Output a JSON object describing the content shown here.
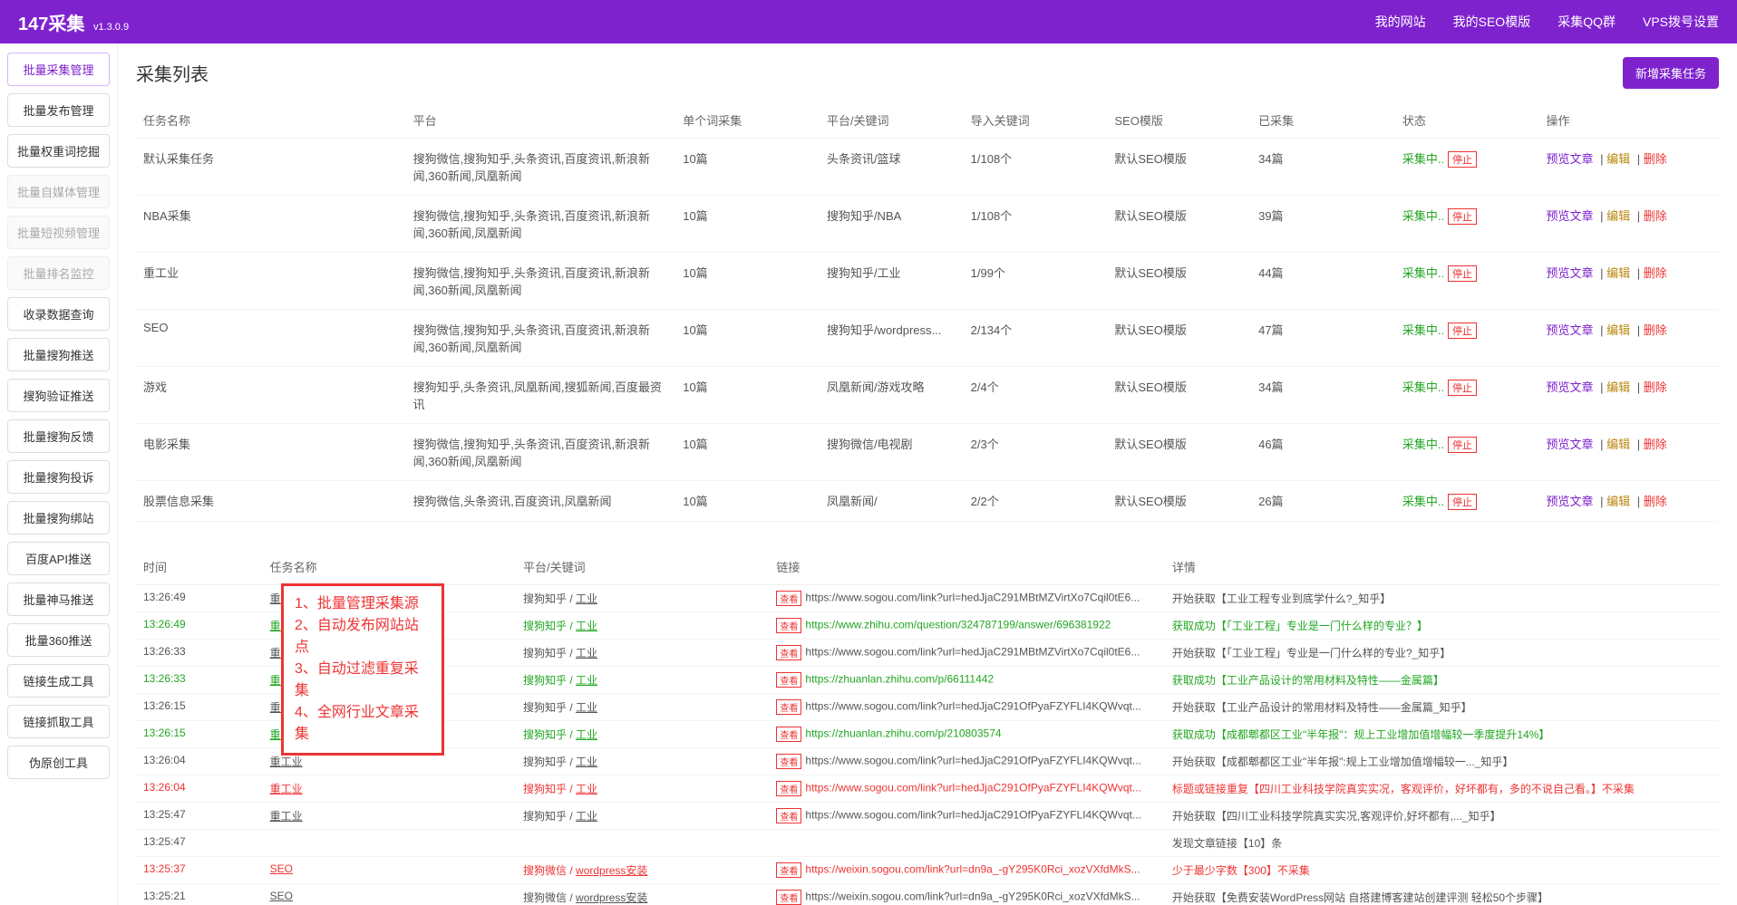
{
  "brand": {
    "name": "147采集",
    "version": "v1.3.0.9"
  },
  "nav": [
    "我的网站",
    "我的SEO模版",
    "采集QQ群",
    "VPS拨号设置"
  ],
  "sidebar": [
    {
      "label": "批量采集管理",
      "state": "active"
    },
    {
      "label": "批量发布管理",
      "state": ""
    },
    {
      "label": "批量权重词挖掘",
      "state": ""
    },
    {
      "label": "批量自媒体管理",
      "state": "disabled"
    },
    {
      "label": "批量短视频管理",
      "state": "disabled"
    },
    {
      "label": "批量排名监控",
      "state": "disabled"
    },
    {
      "label": "收录数据查询",
      "state": ""
    },
    {
      "label": "批量搜狗推送",
      "state": ""
    },
    {
      "label": "搜狗验证推送",
      "state": ""
    },
    {
      "label": "批量搜狗反馈",
      "state": ""
    },
    {
      "label": "批量搜狗投诉",
      "state": ""
    },
    {
      "label": "批量搜狗绑站",
      "state": ""
    },
    {
      "label": "百度API推送",
      "state": ""
    },
    {
      "label": "批量神马推送",
      "state": ""
    },
    {
      "label": "批量360推送",
      "state": ""
    },
    {
      "label": "链接生成工具",
      "state": ""
    },
    {
      "label": "链接抓取工具",
      "state": ""
    },
    {
      "label": "伪原创工具",
      "state": ""
    }
  ],
  "pageTitle": "采集列表",
  "newBtn": "新增采集任务",
  "cols": [
    "任务名称",
    "平台",
    "单个词采集",
    "平台/关键词",
    "导入关键词",
    "SEO模版",
    "已采集",
    "状态",
    "操作"
  ],
  "statusText": "采集中..",
  "stopText": "停止",
  "actions": {
    "preview": "预览文章",
    "edit": "编辑",
    "del": "删除"
  },
  "tasks": [
    {
      "name": "默认采集任务",
      "plat": "搜狗微信,搜狗知乎,头条资讯,百度资讯,新浪新闻,360新闻,凤凰新闻",
      "per": "10篇",
      "kw": "头条资讯/篮球",
      "imp": "1/108个",
      "tpl": "默认SEO模版",
      "cnt": "34篇"
    },
    {
      "name": "NBA采集",
      "plat": "搜狗微信,搜狗知乎,头条资讯,百度资讯,新浪新闻,360新闻,凤凰新闻",
      "per": "10篇",
      "kw": "搜狗知乎/NBA",
      "imp": "1/108个",
      "tpl": "默认SEO模版",
      "cnt": "39篇"
    },
    {
      "name": "重工业",
      "plat": "搜狗微信,搜狗知乎,头条资讯,百度资讯,新浪新闻,360新闻,凤凰新闻",
      "per": "10篇",
      "kw": "搜狗知乎/工业",
      "imp": "1/99个",
      "tpl": "默认SEO模版",
      "cnt": "44篇"
    },
    {
      "name": "SEO",
      "plat": "搜狗微信,搜狗知乎,头条资讯,百度资讯,新浪新闻,360新闻,凤凰新闻",
      "per": "10篇",
      "kw": "搜狗知乎/wordpress...",
      "imp": "2/134个",
      "tpl": "默认SEO模版",
      "cnt": "47篇"
    },
    {
      "name": "游戏",
      "plat": "搜狗知乎,头条资讯,凤凰新闻,搜狐新闻,百度最资讯",
      "per": "10篇",
      "kw": "凤凰新闻/游戏攻略",
      "imp": "2/4个",
      "tpl": "默认SEO模版",
      "cnt": "34篇"
    },
    {
      "name": "电影采集",
      "plat": "搜狗微信,搜狗知乎,头条资讯,百度资讯,新浪新闻,360新闻,凤凰新闻",
      "per": "10篇",
      "kw": "搜狗微信/电视剧",
      "imp": "2/3个",
      "tpl": "默认SEO模版",
      "cnt": "46篇"
    },
    {
      "name": "股票信息采集",
      "plat": "搜狗微信,头条资讯,百度资讯,凤凰新闻",
      "per": "10篇",
      "kw": "凤凰新闻/",
      "imp": "2/2个",
      "tpl": "默认SEO模版",
      "cnt": "26篇"
    }
  ],
  "logCols": [
    "时间",
    "任务名称",
    "平台/关键词",
    "链接",
    "详情"
  ],
  "badge": "查看",
  "overlay": [
    "1、批量管理采集源",
    "2、自动发布网站站点",
    "3、自动过滤重复采集",
    "4、全网行业文章采集"
  ],
  "logs": [
    {
      "c": "",
      "t": "13:26:49",
      "task": "重工业",
      "pk": "搜狗知乎 / 工业",
      "url": "https://www.sogou.com/link?url=hedJjaC291MBtMZVirtXo7Cqil0tE6...",
      "d": "开始获取【工业工程专业到底学什么?_知乎】"
    },
    {
      "c": "row-green",
      "t": "13:26:49",
      "task": "重工业",
      "pk": "搜狗知乎 / 工业",
      "url": "https://www.zhihu.com/question/324787199/answer/696381922",
      "d": "获取成功【「工业工程」专业是一门什么样的专业？】"
    },
    {
      "c": "",
      "t": "13:26:33",
      "task": "重工业",
      "pk": "搜狗知乎 / 工业",
      "url": "https://www.sogou.com/link?url=hedJjaC291MBtMZVirtXo7Cqil0tE6...",
      "d": "开始获取【「工业工程」专业是一门什么样的专业?_知乎】"
    },
    {
      "c": "row-green",
      "t": "13:26:33",
      "task": "重工业",
      "pk": "搜狗知乎 / 工业",
      "url": "https://zhuanlan.zhihu.com/p/66111442",
      "d": "获取成功【工业产品设计的常用材料及特性——金属篇】"
    },
    {
      "c": "",
      "t": "13:26:15",
      "task": "重工业",
      "pk": "搜狗知乎 / 工业",
      "url": "https://www.sogou.com/link?url=hedJjaC291OfPyaFZYFLI4KQWvqt...",
      "d": "开始获取【工业产品设计的常用材料及特性——金属篇_知乎】"
    },
    {
      "c": "row-green",
      "t": "13:26:15",
      "task": "重工业",
      "pk": "搜狗知乎 / 工业",
      "url": "https://zhuanlan.zhihu.com/p/210803574",
      "d": "获取成功【成都郫都区工业\"半年报\"：规上工业增加值增幅较一季度提升14%】"
    },
    {
      "c": "",
      "t": "13:26:04",
      "task": "重工业",
      "pk": "搜狗知乎 / 工业",
      "url": "https://www.sogou.com/link?url=hedJjaC291OfPyaFZYFLI4KQWvqt...",
      "d": "开始获取【成都郫都区工业\"半年报\":规上工业增加值增幅较一..._知乎】"
    },
    {
      "c": "row-red",
      "t": "13:26:04",
      "task": "重工业",
      "pk": "搜狗知乎 / 工业",
      "url": "https://www.sogou.com/link?url=hedJjaC291OfPyaFZYFLI4KQWvqt...",
      "d": "标题或链接重复【四川工业科技学院真实实况，客观评价，好坏都有，多的不说自己看。】不采集"
    },
    {
      "c": "",
      "t": "13:25:47",
      "task": "重工业",
      "pk": "搜狗知乎 / 工业",
      "url": "https://www.sogou.com/link?url=hedJjaC291OfPyaFZYFLI4KQWvqt...",
      "d": "开始获取【四川工业科技学院真实实况,客观评价,好坏都有,..._知乎】"
    },
    {
      "c": "",
      "t": "13:25:47",
      "task": "",
      "pk": "",
      "url": "",
      "d": "发现文章链接【10】条"
    },
    {
      "c": "row-red",
      "t": "13:25:37",
      "task": "SEO",
      "pk": "搜狗微信 / wordpress安装",
      "url": "https://weixin.sogou.com/link?url=dn9a_-gY295K0Rci_xozVXfdMkS...",
      "d": "少于最少字数【300】不采集"
    },
    {
      "c": "",
      "t": "13:25:21",
      "task": "SEO",
      "pk": "搜狗微信 / wordpress安装",
      "url": "https://weixin.sogou.com/link?url=dn9a_-gY295K0Rci_xozVXfdMkS...",
      "d": "开始获取【免费安装WordPress网站 自搭建博客建站创建评测 轻松50个步骤】"
    }
  ]
}
